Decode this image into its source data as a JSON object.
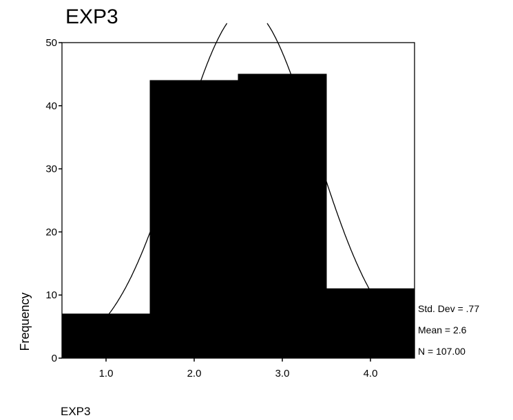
{
  "chart_data": {
    "type": "bar",
    "title": "EXP3",
    "xlabel": "EXP3",
    "ylabel": "Frequency",
    "categories": [
      "1.0",
      "2.0",
      "3.0",
      "4.0"
    ],
    "values": [
      7,
      44,
      45,
      11
    ],
    "ylim": [
      0,
      50
    ],
    "y_ticks": [
      0,
      10,
      20,
      30,
      40,
      50
    ],
    "grid": false,
    "bar_color": "#000000",
    "normal_curve": {
      "mean": 2.6,
      "std_dev": 0.77,
      "n": 107
    },
    "stats": [
      "Std. Dev = .77",
      "Mean = 2.6",
      "N = 107.00"
    ]
  }
}
